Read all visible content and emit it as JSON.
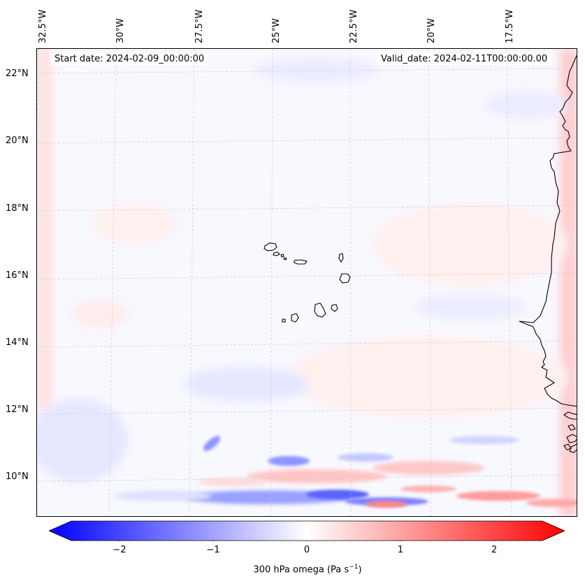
{
  "header": {
    "start_date": "Start date: 2024-02-09_00:00:00",
    "valid_date": "Valid_date: 2024-02-11T00:00:00.00"
  },
  "longitude_labels": [
    "32.5°W",
    "30°W",
    "27.5°W",
    "25°W",
    "22.5°W",
    "20°W",
    "17.5°W"
  ],
  "latitude_labels": [
    "22°N",
    "20°N",
    "18°N",
    "16°N",
    "14°N",
    "12°N",
    "10°N"
  ],
  "colorbar": {
    "label": "300 hPa omega (Pa s",
    "label_sup": "−1",
    "label_close": ")",
    "ticks": [
      "−2",
      "−1",
      "0",
      "1",
      "2"
    ],
    "min": -2.6,
    "max": 2.6,
    "negative_color": "#0000ff",
    "zero_color": "#ffffff",
    "positive_color": "#ff0000"
  },
  "map": {
    "coastline_color": "#000000",
    "gridline_color": "#c8c8c8",
    "ocean_background": "#f8f8ff"
  }
}
